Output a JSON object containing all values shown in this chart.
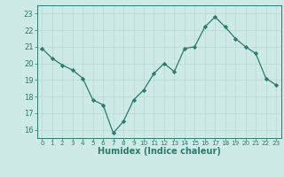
{
  "x": [
    0,
    1,
    2,
    3,
    4,
    5,
    6,
    7,
    8,
    9,
    10,
    11,
    12,
    13,
    14,
    15,
    16,
    17,
    18,
    19,
    20,
    21,
    22,
    23
  ],
  "y": [
    20.9,
    20.3,
    19.9,
    19.6,
    19.1,
    17.8,
    17.5,
    15.8,
    16.5,
    17.8,
    18.4,
    19.4,
    20.0,
    19.5,
    20.9,
    21.0,
    22.2,
    22.8,
    22.2,
    21.5,
    21.0,
    20.6,
    19.1,
    18.7
  ],
  "xlabel": "Humidex (Indice chaleur)",
  "ylim": [
    15.5,
    23.5
  ],
  "xlim": [
    -0.5,
    23.5
  ],
  "yticks": [
    16,
    17,
    18,
    19,
    20,
    21,
    22,
    23
  ],
  "xtick_labels": [
    "0",
    "1",
    "2",
    "3",
    "4",
    "5",
    "6",
    "7",
    "8",
    "9",
    "10",
    "11",
    "12",
    "13",
    "14",
    "15",
    "16",
    "17",
    "18",
    "19",
    "20",
    "21",
    "22",
    "23"
  ],
  "line_color": "#2d7a6e",
  "bg_color": "#ceeae6",
  "grid_color": "#b8d8d4",
  "text_color": "#2d7a6e",
  "spine_color": "#2d7a6e"
}
